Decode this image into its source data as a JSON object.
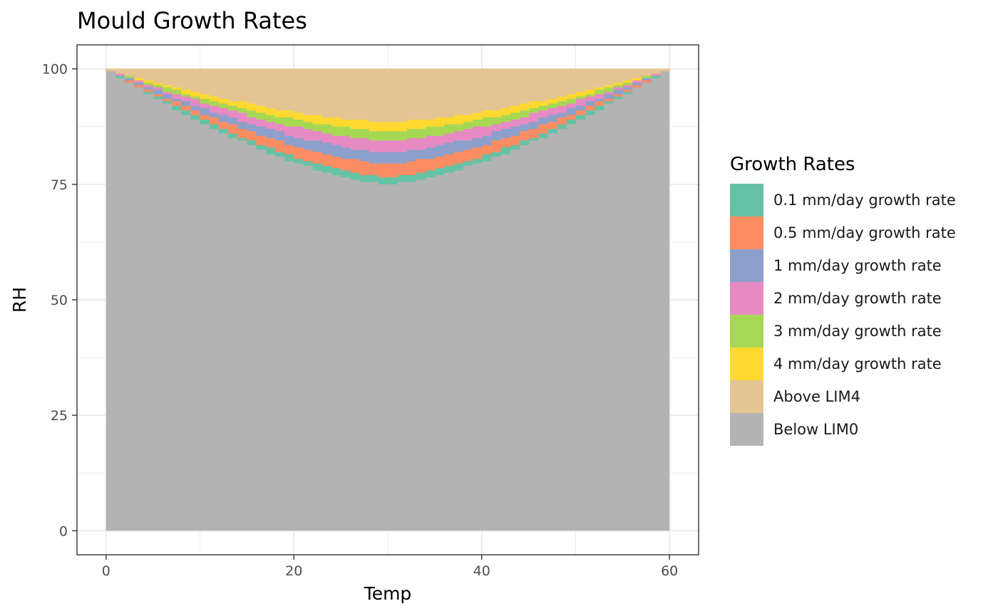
{
  "chart_data": {
    "type": "heatmap",
    "title": "Mould Growth Rates",
    "xlabel": "Temp",
    "ylabel": "RH",
    "xlim": [
      -3.1,
      63.1
    ],
    "ylim": [
      -5.2,
      105.2
    ],
    "x_ticks": [
      0,
      20,
      40,
      60
    ],
    "y_ticks": [
      0,
      25,
      50,
      75,
      100
    ],
    "grid": true,
    "legend": {
      "title": "Growth Rates",
      "position": "right",
      "entries": [
        {
          "label": "0.1 mm/day growth rate",
          "color": "#66C2A5"
        },
        {
          "label": "0.5 mm/day growth rate",
          "color": "#FC8D62"
        },
        {
          "label": "1 mm/day growth rate",
          "color": "#8DA0CB"
        },
        {
          "label": "2 mm/day growth rate",
          "color": "#E78AC3"
        },
        {
          "label": "3 mm/day growth rate",
          "color": "#A6D854"
        },
        {
          "label": "4 mm/day growth rate",
          "color": "#FFD92F"
        },
        {
          "label": "Above LIM4",
          "color": "#E5C494"
        },
        {
          "label": "Below LIM0",
          "color": "#B3B3B3"
        }
      ]
    },
    "temp_range": [
      0,
      60
    ],
    "rh_range": [
      0,
      100
    ],
    "boundaries": [
      {
        "label": "0.1 mm/day growth rate",
        "min_rh": 75,
        "temp_at_min": 30
      },
      {
        "label": "0.5 mm/day growth rate",
        "min_rh": 76.5,
        "temp_at_min": 30
      },
      {
        "label": "1 mm/day growth rate",
        "min_rh": 79.5,
        "temp_at_min": 30
      },
      {
        "label": "2 mm/day growth rate",
        "min_rh": 82,
        "temp_at_min": 30
      },
      {
        "label": "3 mm/day growth rate",
        "min_rh": 84.5,
        "temp_at_min": 30
      },
      {
        "label": "4 mm/day growth rate",
        "min_rh": 86.5,
        "temp_at_min": 30
      },
      {
        "label": "Above LIM4",
        "min_rh": 88.5,
        "temp_at_min": 30
      }
    ]
  }
}
